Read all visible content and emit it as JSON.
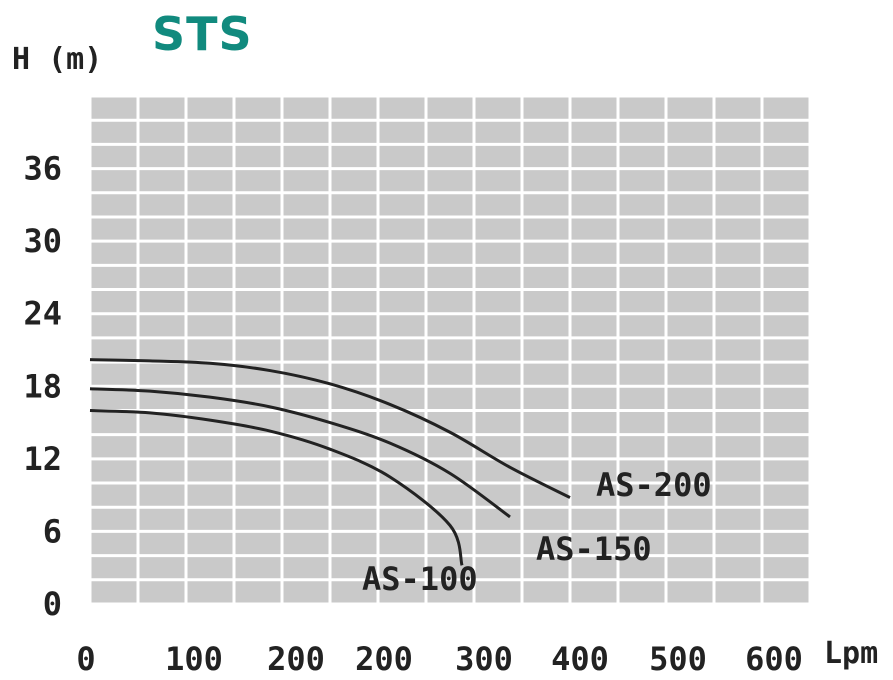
{
  "brand": "STS",
  "chart_data": {
    "type": "line",
    "ylabel": "H (m)",
    "xunit": "Lpm",
    "x_ticks": [
      "0",
      "100",
      "200",
      "200",
      "300",
      "400",
      "500",
      "600"
    ],
    "y_ticks": [
      "0",
      "6",
      "12",
      "18",
      "24",
      "30",
      "36"
    ],
    "xlim": [
      0,
      600
    ],
    "ylim": [
      0,
      42
    ],
    "grid": true,
    "series": [
      {
        "name": "AS-200",
        "color": "#222222",
        "points": [
          [
            0,
            20.2
          ],
          [
            50,
            20.1
          ],
          [
            100,
            19.9
          ],
          [
            150,
            19.3
          ],
          [
            200,
            18.2
          ],
          [
            250,
            16.5
          ],
          [
            300,
            14.2
          ],
          [
            350,
            11.3
          ],
          [
            400,
            8.8
          ]
        ]
      },
      {
        "name": "AS-150",
        "color": "#222222",
        "points": [
          [
            0,
            17.8
          ],
          [
            50,
            17.6
          ],
          [
            100,
            17.1
          ],
          [
            150,
            16.3
          ],
          [
            200,
            15.0
          ],
          [
            250,
            13.3
          ],
          [
            300,
            10.8
          ],
          [
            350,
            7.2
          ]
        ]
      },
      {
        "name": "AS-100",
        "color": "#222222",
        "points": [
          [
            0,
            16.0
          ],
          [
            50,
            15.8
          ],
          [
            100,
            15.2
          ],
          [
            150,
            14.3
          ],
          [
            200,
            12.8
          ],
          [
            250,
            10.5
          ],
          [
            300,
            6.5
          ],
          [
            310,
            3.2
          ]
        ]
      }
    ]
  }
}
